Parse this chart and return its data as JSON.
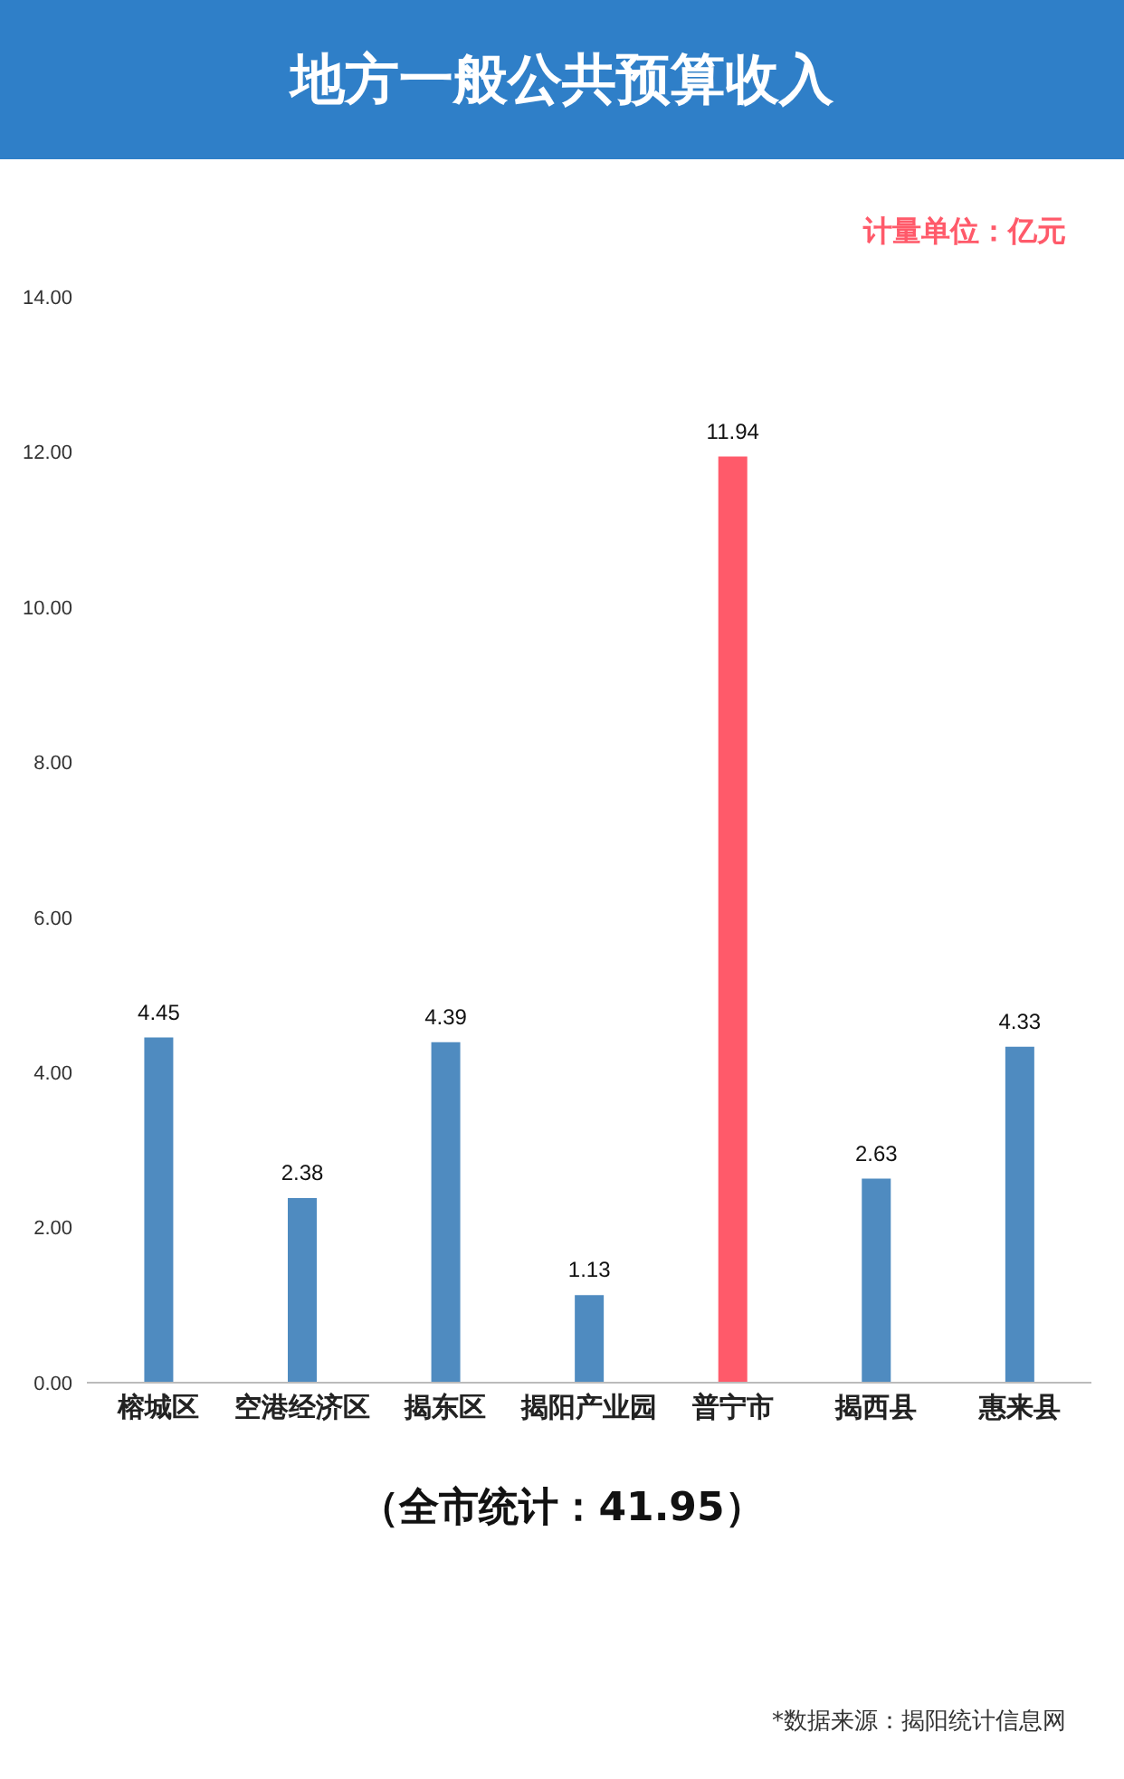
{
  "chart_data": {
    "type": "bar",
    "title": "地方一般公共预算收入",
    "categories": [
      "榕城区",
      "空港经济区",
      "揭东区",
      "揭阳产业园",
      "普宁市",
      "揭西县",
      "惠来县"
    ],
    "values": [
      4.45,
      2.38,
      4.39,
      1.13,
      11.94,
      2.63,
      4.33
    ],
    "colors": [
      "#4f8bc0",
      "#4f8bc0",
      "#4f8bc0",
      "#4f8bc0",
      "#ff5a6a",
      "#4f8bc0",
      "#4f8bc0"
    ],
    "ylim": [
      0,
      14
    ],
    "yticks": [
      {
        "value": 0,
        "label": "0.00"
      },
      {
        "value": 2,
        "label": "2.00"
      },
      {
        "value": 4,
        "label": "4.00"
      },
      {
        "value": 6,
        "label": "6.00"
      },
      {
        "value": 8,
        "label": "8.00"
      },
      {
        "value": 10,
        "label": "10.00"
      },
      {
        "value": 12,
        "label": "12.00"
      },
      {
        "value": 14,
        "label": "14.00"
      }
    ],
    "data_labels": true,
    "grid": false,
    "annotations": [
      "计量单位：亿元",
      "（全市统计：41.95）",
      "*数据来源：揭阳统计信息网"
    ]
  }
}
